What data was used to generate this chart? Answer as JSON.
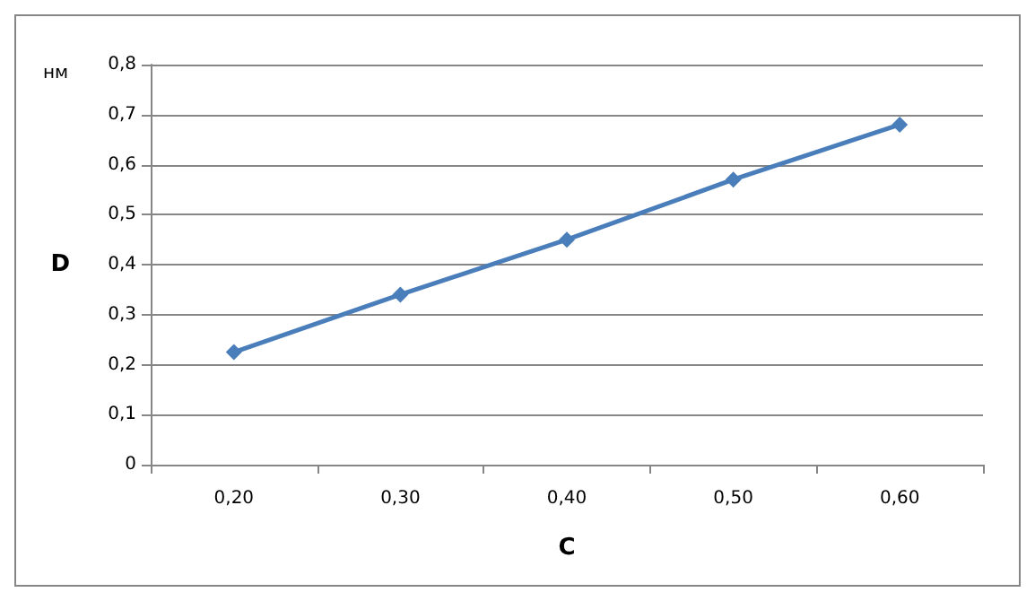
{
  "chart_data": {
    "type": "line",
    "xlabel": "C",
    "ylabel": "D",
    "annotations": [
      "нм"
    ],
    "categories": [
      "0,20",
      "0,30",
      "0,40",
      "0,50",
      "0,60"
    ],
    "series": [
      {
        "color": "#4a7ebb",
        "values": [
          0.225,
          0.34,
          0.45,
          0.57,
          0.68
        ]
      }
    ],
    "ylim": [
      0,
      0.8
    ],
    "yticks": [
      0,
      {
        "value": 0.1,
        "label": "0,1"
      },
      {
        "value": 0.2,
        "label": "0,2"
      },
      {
        "value": 0.3,
        "label": "0,3"
      },
      {
        "value": 0.4,
        "label": "0,4"
      },
      {
        "value": 0.5,
        "label": "0,5"
      },
      {
        "value": 0.6,
        "label": "0,6"
      },
      {
        "value": 0.7,
        "label": "0,7"
      },
      {
        "value": 0.8,
        "label": "0,8"
      }
    ],
    "grid": "y",
    "marker": "diamond",
    "line_style": "solid"
  }
}
